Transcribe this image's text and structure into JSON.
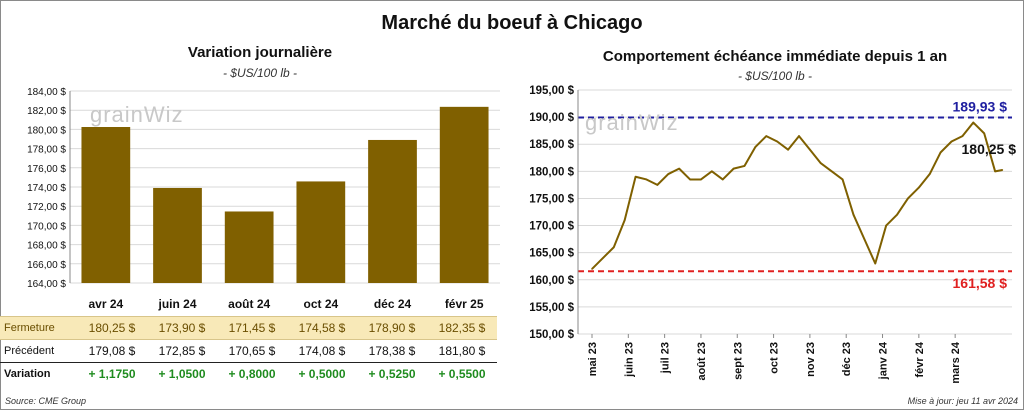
{
  "main_title": "Marché du boeuf à Chicago",
  "watermark": "grainWiz",
  "left_chart": {
    "title": "Variation  journalière",
    "unit": "- $US/100 lb -"
  },
  "right_chart": {
    "title": "Comportement  échéance  immédiate  depuis  1 an",
    "unit": "- $US/100 lb -"
  },
  "table": {
    "rows": [
      {
        "label": "Fermeture",
        "values": [
          "180,25  $",
          "173,90  $",
          "171,45  $",
          "174,58  $",
          "178,90  $",
          "182,35  $"
        ]
      },
      {
        "label": "Précédent",
        "values": [
          "179,08  $",
          "172,85  $",
          "170,65  $",
          "174,08  $",
          "178,38  $",
          "181,80  $"
        ]
      },
      {
        "label": "Variation",
        "values": [
          "+ 1,1750",
          "+ 1,0500",
          "+ 0,8000",
          "+ 0,5000",
          "+ 0,5250",
          "+ 0,5500"
        ]
      }
    ]
  },
  "footer": {
    "source": "Source: CME Group",
    "updated": "Mise à jour: jeu 11 avr 2024"
  },
  "colors": {
    "bar": "#806000",
    "line": "#7f6000",
    "high_line": "#1f1fa0",
    "low_line": "#e02020",
    "positive": "#1f8c1f"
  },
  "chart_data": [
    {
      "type": "bar",
      "title": "Variation  journalière",
      "categories": [
        "avr 24",
        "juin 24",
        "août 24",
        "oct 24",
        "déc 24",
        "févr 25"
      ],
      "values": [
        180.25,
        173.9,
        171.45,
        174.58,
        178.9,
        182.35
      ],
      "ylim": [
        164,
        184
      ],
      "yticks": [
        164,
        166,
        168,
        170,
        172,
        174,
        176,
        178,
        180,
        182,
        184
      ],
      "ytick_labels": [
        "164,00 $",
        "166,00 $",
        "168,00 $",
        "170,00 $",
        "172,00 $",
        "174,00 $",
        "176,00 $",
        "178,00 $",
        "180,00 $",
        "182,00 $",
        "184,00 $"
      ],
      "grid": true
    },
    {
      "type": "line",
      "title": "Comportement  échéance  immédiate  depuis  1 an",
      "ylim": [
        150,
        195
      ],
      "yticks": [
        150,
        155,
        160,
        165,
        170,
        175,
        180,
        185,
        190,
        195
      ],
      "ytick_labels": [
        "150,00 $",
        "155,00 $",
        "160,00 $",
        "165,00 $",
        "170,00 $",
        "175,00 $",
        "180,00 $",
        "185,00 $",
        "190,00 $",
        "195,00 $"
      ],
      "x_labels": [
        "mai 23",
        "juin 23",
        "juil 23",
        "août 23",
        "sept 23",
        "oct 23",
        "nov 23",
        "déc 23",
        "janv 24",
        "févr 24",
        "mars 24"
      ],
      "x": [
        0,
        0.3,
        0.6,
        0.9,
        1.2,
        1.5,
        1.8,
        2.1,
        2.4,
        2.7,
        3.0,
        3.3,
        3.6,
        3.9,
        4.2,
        4.5,
        4.8,
        5.1,
        5.4,
        5.7,
        6.0,
        6.3,
        6.6,
        6.9,
        7.2,
        7.5,
        7.8,
        8.1,
        8.4,
        8.7,
        9.0,
        9.3,
        9.6,
        9.9,
        10.2,
        10.5,
        10.8,
        11.1,
        11.3
      ],
      "values": [
        162.0,
        164.0,
        166.0,
        171.0,
        179.0,
        178.5,
        177.5,
        179.5,
        180.5,
        178.5,
        178.5,
        180.0,
        178.5,
        180.5,
        181.0,
        184.5,
        186.5,
        185.5,
        184.0,
        186.5,
        184.0,
        181.5,
        180.0,
        178.5,
        172.0,
        167.5,
        163.0,
        170.0,
        172.0,
        175.0,
        177.0,
        179.5,
        183.5,
        185.5,
        186.5,
        189.0,
        187.0,
        180.0,
        180.25
      ],
      "reference_lines": [
        {
          "value": 189.93,
          "label": "189,93 $"
        },
        {
          "value": 161.58,
          "label": "161,58 $"
        }
      ],
      "last_label": "180,25 $",
      "grid": true
    }
  ]
}
